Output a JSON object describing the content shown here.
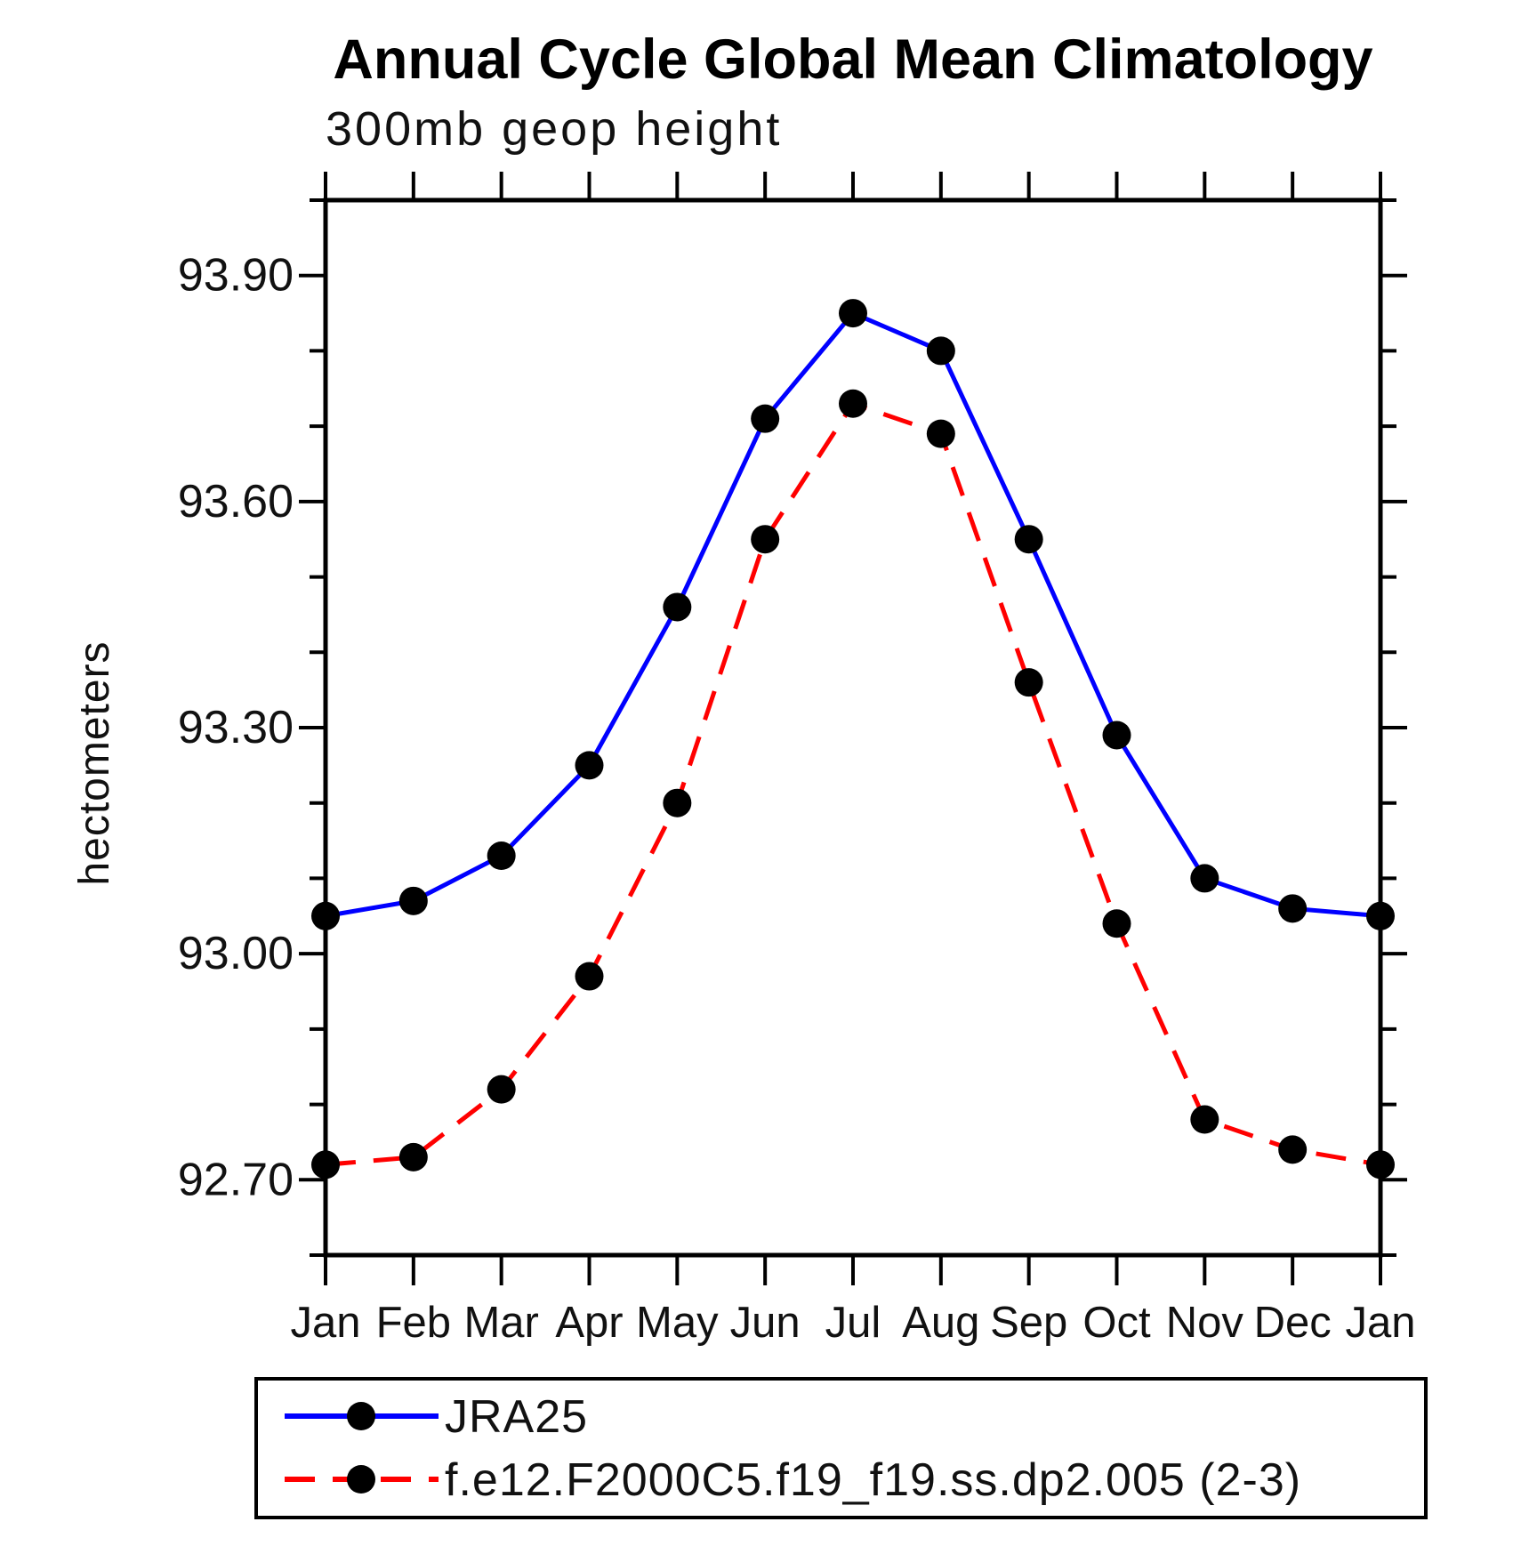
{
  "page": {
    "background": "#ffffff"
  },
  "chart_data": {
    "type": "line",
    "title": "Annual Cycle Global Mean Climatology",
    "subtitle": "300mb geop height",
    "ylabel": "hectometers",
    "categories": [
      "Jan",
      "Feb",
      "Mar",
      "Apr",
      "May",
      "Jun",
      "Jul",
      "Aug",
      "Sep",
      "Oct",
      "Nov",
      "Dec",
      "Jan"
    ],
    "ylim": [
      92.6,
      94.0
    ],
    "ytick_step": 0.1,
    "ytick_labeled": [
      92.7,
      93.0,
      93.3,
      93.6,
      93.9
    ],
    "ytick_label_format": "0.00",
    "grid": false,
    "legend_position": "bottom-left-box",
    "axis_color": "#000000",
    "marker_color": "#000000",
    "series": [
      {
        "name": "JRA25",
        "color": "#0000ff",
        "style": "solid",
        "marker": "circle",
        "values": [
          93.05,
          93.07,
          93.13,
          93.25,
          93.46,
          93.71,
          93.85,
          93.8,
          93.55,
          93.29,
          93.1,
          93.06,
          93.05
        ]
      },
      {
        "name": "f.e12.F2000C5.f19_f19.ss.dp2.005 (2-3)",
        "color": "#ff0000",
        "style": "dashed",
        "marker": "circle",
        "values": [
          92.72,
          92.73,
          92.82,
          92.97,
          93.2,
          93.55,
          93.73,
          93.69,
          93.36,
          93.04,
          92.78,
          92.74,
          92.72
        ]
      }
    ]
  }
}
